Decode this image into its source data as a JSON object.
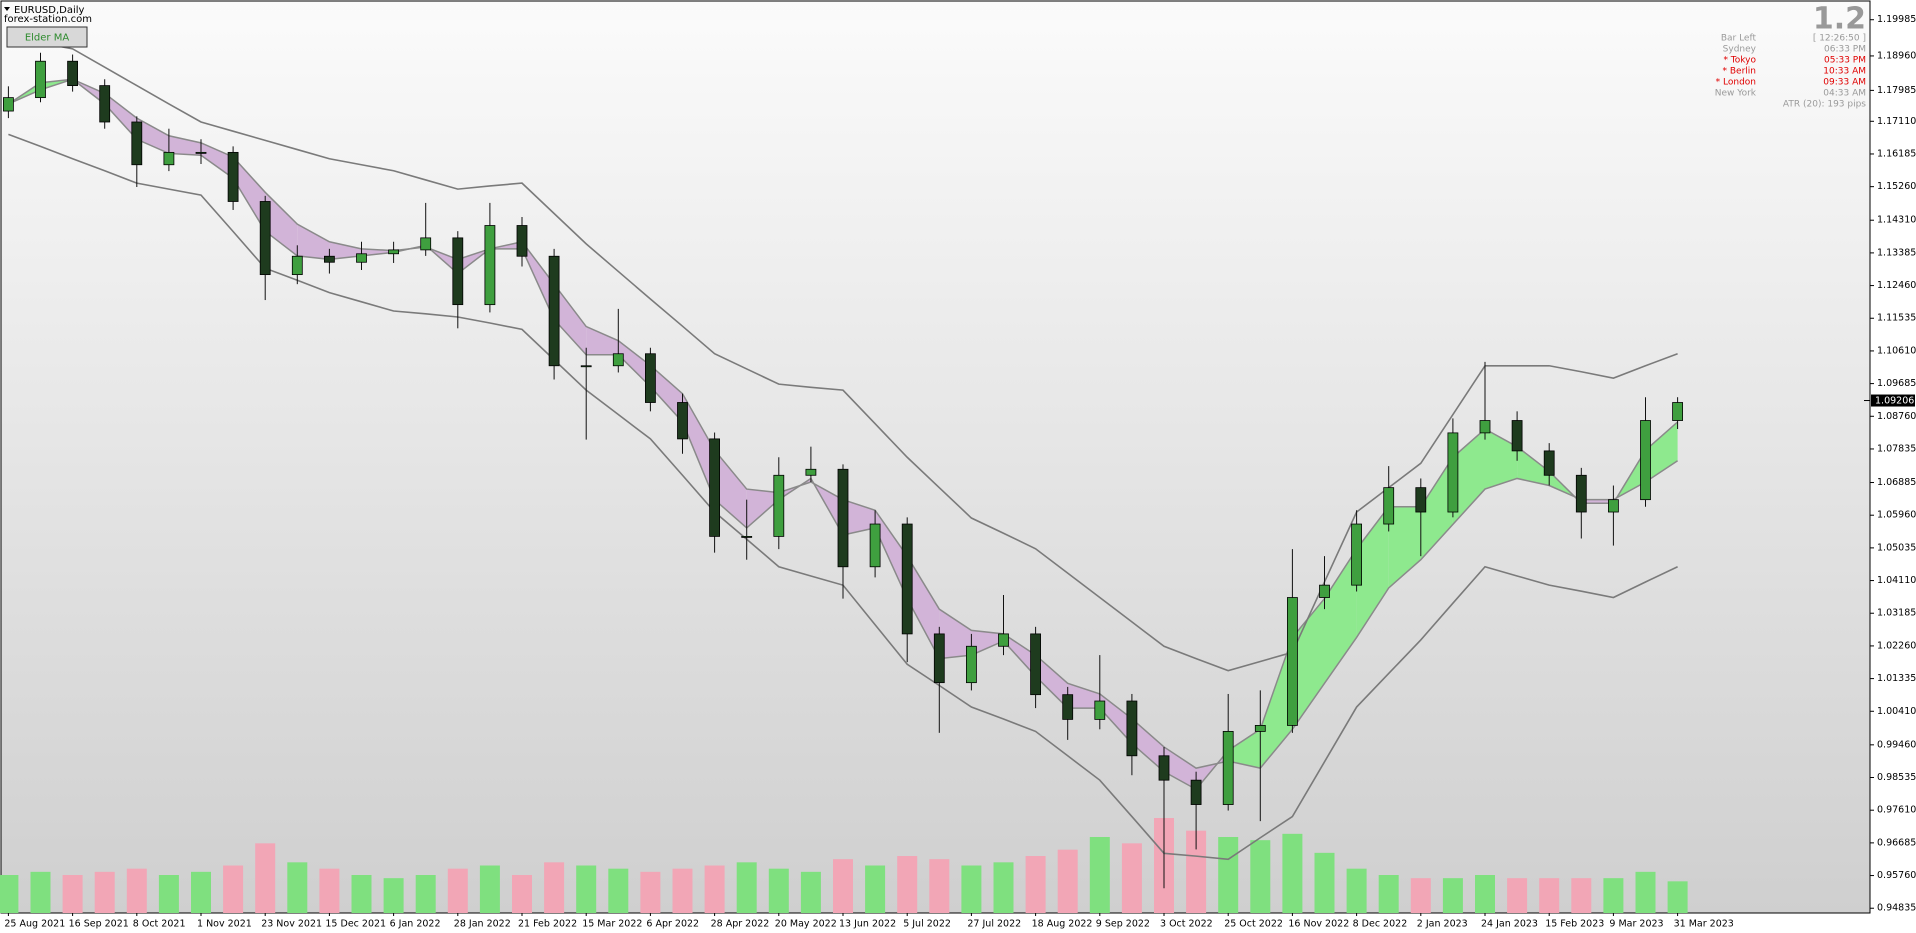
{
  "chart_data": {
    "type": "candlestick",
    "title": "EURUSD,Daily",
    "source": "forex-station.com",
    "button": "Elder MA",
    "categories": [
      "25 Aug 2021",
      null,
      "16 Sep 2021",
      null,
      "8 Oct 2021",
      null,
      "1 Nov 2021",
      null,
      "23 Nov 2021",
      null,
      "15 Dec 2021",
      null,
      "6 Jan 2022",
      null,
      "28 Jan 2022",
      null,
      "21 Feb 2022",
      null,
      "15 Mar 2022",
      null,
      "6 Apr 2022",
      null,
      "28 Apr 2022",
      null,
      "20 May 2022",
      null,
      "13 Jun 2022",
      null,
      "5 Jul 2022",
      null,
      "27 Jul 2022",
      null,
      "18 Aug 2022",
      null,
      "9 Sep 2022",
      null,
      "3 Oct 2022",
      null,
      "25 Oct 2022",
      null,
      "16 Nov 2022",
      null,
      "8 Dec 2022",
      null,
      "2 Jan 2023",
      null,
      "24 Jan 2023",
      null,
      "15 Feb 2023",
      null,
      "9 Mar 2023",
      null,
      "31 Mar 2023"
    ],
    "open": [
      1.174,
      1.1778,
      1.1881,
      1.1812,
      1.1709,
      1.1588,
      1.1623,
      1.1623,
      1.1484,
      1.1277,
      1.1329,
      1.1312,
      1.1336,
      1.1347,
      1.1381,
      1.1192,
      1.1416,
      1.1329,
      1.1019,
      1.1019,
      1.1053,
      1.0915,
      1.0812,
      1.0536,
      1.0536,
      1.0709,
      1.0726,
      1.045,
      1.0571,
      1.026,
      1.0122,
      1.0225,
      1.026,
      1.0088,
      1.0018,
      1.007,
      0.9915,
      0.9846,
      0.9777,
      0.9984,
      1.0001,
      1.0363,
      1.0398,
      1.0571,
      1.0674,
      1.0605,
      1.0829,
      1.0864,
      1.0778,
      1.0709,
      1.0605,
      1.064,
      1.0864
    ],
    "high": [
      1.181,
      1.1905,
      1.19,
      1.183,
      1.1725,
      1.169,
      1.166,
      1.164,
      1.15,
      1.136,
      1.135,
      1.137,
      1.137,
      1.148,
      1.14,
      1.148,
      1.144,
      1.135,
      1.107,
      1.118,
      1.107,
      1.094,
      1.083,
      1.064,
      1.076,
      1.079,
      1.074,
      1.061,
      1.059,
      1.028,
      1.026,
      1.037,
      1.028,
      1.011,
      1.02,
      1.009,
      0.994,
      0.987,
      1.009,
      1.01,
      1.05,
      1.048,
      1.061,
      1.0735,
      1.07,
      1.087,
      1.103,
      1.089,
      1.08,
      1.073,
      1.068,
      1.093,
      1.093
    ],
    "low": [
      1.172,
      1.1765,
      1.1795,
      1.169,
      1.1525,
      1.157,
      1.159,
      1.146,
      1.1205,
      1.125,
      1.128,
      1.129,
      1.131,
      1.133,
      1.1125,
      1.117,
      1.13,
      1.098,
      1.081,
      1.1,
      1.089,
      1.077,
      1.049,
      1.047,
      1.05,
      1.069,
      1.036,
      1.042,
      1.018,
      0.998,
      1.01,
      1.02,
      1.005,
      0.996,
      0.999,
      0.986,
      0.954,
      0.965,
      0.976,
      0.973,
      0.998,
      1.033,
      1.038,
      1.055,
      1.048,
      1.059,
      1.081,
      1.075,
      1.068,
      1.053,
      1.051,
      1.062,
      1.084
    ],
    "close": [
      1.1778,
      1.1881,
      1.1812,
      1.1709,
      1.1588,
      1.1623,
      1.1623,
      1.1484,
      1.1277,
      1.1329,
      1.1312,
      1.1336,
      1.1347,
      1.1381,
      1.1192,
      1.1416,
      1.1329,
      1.1019,
      1.1019,
      1.1053,
      1.0915,
      1.0812,
      1.0536,
      1.0536,
      1.0709,
      1.0726,
      1.045,
      1.0571,
      1.026,
      1.0122,
      1.0225,
      1.026,
      1.0088,
      1.0018,
      1.007,
      0.9915,
      0.9846,
      0.9777,
      0.9984,
      1.0001,
      1.0363,
      1.0398,
      1.0571,
      1.0674,
      1.0605,
      1.0829,
      1.0864,
      1.0778,
      1.0709,
      1.0605,
      1.064,
      1.0864,
      1.0915
    ],
    "bands": {
      "color": "#7a7a7a",
      "upper": [
        1.195,
        1.1933,
        1.1916,
        1.1864,
        1.1812,
        1.176,
        1.1709,
        1.1683,
        1.1657,
        1.1631,
        1.1605,
        1.1588,
        1.1571,
        1.1545,
        1.1519,
        1.1528,
        1.1536,
        1.145,
        1.1364,
        1.1286,
        1.1208,
        1.1131,
        1.1053,
        1.101,
        1.0967,
        1.0958,
        1.095,
        1.0855,
        1.076,
        1.0674,
        1.0588,
        1.0545,
        1.0501,
        1.0432,
        1.0363,
        1.0294,
        1.0225,
        1.019,
        1.0156,
        1.0182,
        1.0208,
        1.0407,
        1.0605,
        1.0674,
        1.0743,
        1.0881,
        1.1019,
        1.1019,
        1.1019,
        1.1002,
        1.0984,
        1.1019,
        1.1053
      ],
      "lower": [
        1.1674,
        1.164,
        1.1605,
        1.1571,
        1.1536,
        1.1519,
        1.1502,
        1.1399,
        1.1295,
        1.1261,
        1.1226,
        1.12,
        1.1174,
        1.1166,
        1.1157,
        1.114,
        1.1122,
        1.1036,
        1.095,
        1.0881,
        1.0812,
        1.0709,
        1.0605,
        1.0528,
        1.045,
        1.0424,
        1.0398,
        1.0286,
        1.0174,
        1.0114,
        1.0053,
        1.0019,
        0.9984,
        0.9915,
        0.9846,
        0.9743,
        0.9639,
        0.9631,
        0.9622,
        0.9683,
        0.9743,
        0.9898,
        1.0053,
        1.0148,
        1.0243,
        1.0347,
        1.045,
        1.0424,
        1.0398,
        1.0381,
        1.0363,
        1.0407,
        1.045
      ]
    },
    "ma": {
      "line_color": "#8a8a8a",
      "up_color": "#8ee98e",
      "down_color": "#d2b4d8",
      "fast": [
        1.176,
        1.182,
        1.183,
        1.176,
        1.166,
        1.162,
        1.1615,
        1.155,
        1.14,
        1.133,
        1.132,
        1.133,
        1.134,
        1.136,
        1.128,
        1.135,
        1.135,
        1.115,
        1.105,
        1.105,
        1.096,
        1.086,
        1.064,
        1.056,
        1.064,
        1.07,
        1.054,
        1.056,
        1.036,
        1.019,
        1.02,
        1.024,
        1.014,
        1.005,
        1.005,
        0.995,
        0.987,
        0.982,
        0.993,
        0.999,
        1.025,
        1.036,
        1.05,
        1.062,
        1.062,
        1.076,
        1.084,
        1.079,
        1.072,
        1.063,
        1.063,
        1.078,
        1.086
      ],
      "slow": [
        1.176,
        1.18,
        1.183,
        1.179,
        1.172,
        1.167,
        1.165,
        1.161,
        1.151,
        1.142,
        1.137,
        1.135,
        1.1345,
        1.1355,
        1.132,
        1.135,
        1.137,
        1.125,
        1.113,
        1.109,
        1.102,
        1.094,
        1.078,
        1.067,
        1.066,
        1.069,
        1.064,
        1.061,
        1.048,
        1.033,
        1.027,
        1.026,
        1.02,
        1.012,
        1.009,
        1.002,
        0.994,
        0.988,
        0.99,
        0.988,
        0.999,
        1.012,
        1.025,
        1.039,
        1.047,
        1.057,
        1.067,
        1.07,
        1.068,
        1.064,
        1.064,
        1.069,
        1.075
      ]
    },
    "volume": {
      "up_color": "#7fe07f",
      "down_color": "#f2a6b6",
      "values": [
        60,
        65,
        60,
        65,
        70,
        60,
        65,
        75,
        110,
        80,
        70,
        60,
        55,
        60,
        70,
        75,
        60,
        80,
        75,
        70,
        65,
        70,
        75,
        80,
        70,
        65,
        85,
        75,
        90,
        85,
        75,
        80,
        90,
        100,
        120,
        110,
        150,
        130,
        120,
        115,
        125,
        95,
        70,
        60,
        55,
        55,
        60,
        55,
        55,
        55,
        55,
        65,
        50
      ]
    },
    "colors": {
      "up": "#3f9f3f",
      "down": "#1e3b1e",
      "wick": "#111111"
    },
    "last_price": 1.09206,
    "ylim": [
      0.947,
      1.2043
    ],
    "yticks": [
      1.19985,
      {
        "value": 1.1896,
        "label": "1.18960"
      },
      1.17985,
      {
        "value": 1.1711,
        "label": "1.17110"
      },
      1.16185,
      {
        "value": 1.1526,
        "label": "1.15260"
      },
      {
        "value": 1.1431,
        "label": "1.14310"
      },
      1.13385,
      {
        "value": 1.1246,
        "label": "1.12460"
      },
      1.11535,
      {
        "value": 1.1061,
        "label": "1.10610"
      },
      1.09685,
      {
        "value": 1.0876,
        "label": "1.08760"
      },
      1.07835,
      1.06885,
      {
        "value": 1.0596,
        "label": "1.05960"
      },
      1.05035,
      {
        "value": 1.0411,
        "label": "1.04110"
      },
      1.03185,
      {
        "value": 1.0226,
        "label": "1.02260"
      },
      1.01335,
      {
        "value": 1.0041,
        "label": "1.00410"
      },
      {
        "value": 0.9946,
        "label": "0.99460"
      },
      0.98535,
      {
        "value": 0.9761,
        "label": "0.97610"
      },
      0.96685,
      {
        "value": 0.9576,
        "label": "0.95760"
      },
      0.94835
    ],
    "grid": false
  },
  "panel": {
    "version": "1.2",
    "rows": [
      {
        "label": "Bar Left",
        "time": "[ 12:26:50 ]",
        "highlight": false
      },
      {
        "label": "Sydney",
        "time": "06:33 PM",
        "highlight": false
      },
      {
        "label": "* Tokyo",
        "time": "05:33 PM",
        "highlight": true
      },
      {
        "label": "* Berlin",
        "time": "10:33 AM",
        "highlight": true
      },
      {
        "label": "* London",
        "time": "09:33 AM",
        "highlight": true
      },
      {
        "label": "New York",
        "time": "04:33 AM",
        "highlight": false
      }
    ],
    "atr": "ATR (20): 193 pips"
  }
}
